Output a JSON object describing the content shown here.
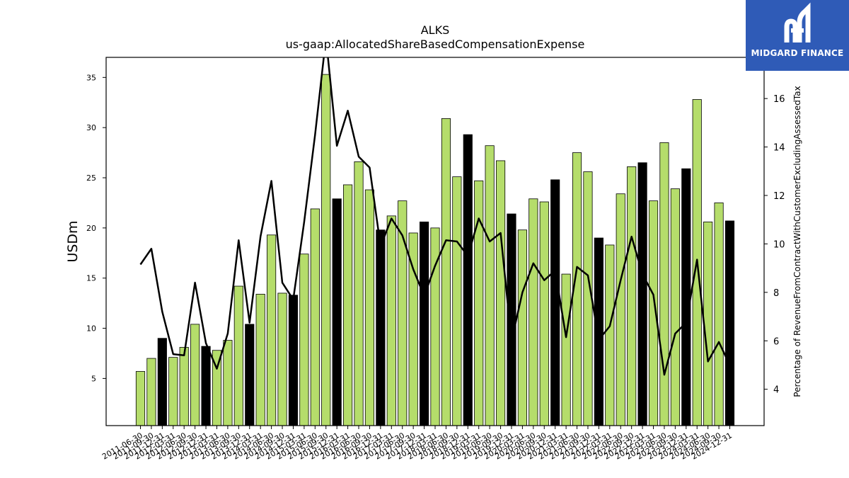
{
  "header": {
    "title": "ALKS",
    "subtitle": "us-gaap:AllocatedShareBasedCompensationExpense"
  },
  "brand": {
    "name": "MIDGARD FINANCE",
    "color": "#2f5bb7"
  },
  "chart_data": {
    "type": "bar",
    "title": "ALKS",
    "subtitle": "us-gaap:AllocatedShareBasedCompensationExpense",
    "ylabel": "USDm",
    "y2label": "Percentage of RevenueFromContractWithCustomerExcludingAssessedTax",
    "ylim": [
      0.3,
      37
    ],
    "y2lim": [
      2.5,
      17.7
    ],
    "yticks": [
      5,
      10,
      15,
      20,
      25,
      30,
      35
    ],
    "y2ticks": [
      4,
      6,
      8,
      10,
      12,
      14,
      16
    ],
    "grid": false,
    "categories": [
      "2011-06-30",
      "2011-09-30",
      "2011-12-31",
      "2012-03-31",
      "2012-06-30",
      "2012-09-30",
      "2012-12-31",
      "2013-03-31",
      "2013-06-30",
      "2013-09-30",
      "2013-12-31",
      "2014-03-31",
      "2014-06-30",
      "2014-09-30",
      "2014-12-31",
      "2015-03-31",
      "2015-06-30",
      "2015-09-30",
      "2015-12-31",
      "2016-03-31",
      "2016-06-30",
      "2016-09-30",
      "2016-12-31",
      "2017-03-31",
      "2017-06-30",
      "2017-09-30",
      "2017-12-31",
      "2018-03-31",
      "2018-06-30",
      "2018-09-30",
      "2018-12-31",
      "2019-03-31",
      "2019-06-30",
      "2019-09-30",
      "2019-12-31",
      "2020-03-31",
      "2020-06-30",
      "2020-09-30",
      "2020-12-31",
      "2021-03-31",
      "2021-06-30",
      "2021-09-30",
      "2021-12-31",
      "2022-03-31",
      "2022-06-30",
      "2022-09-30",
      "2022-12-31",
      "2023-03-31",
      "2023-06-30",
      "2023-09-30",
      "2023-12-31",
      "2024-03-31",
      "2024-06-30",
      "2024-09-30",
      "2024-12-31"
    ],
    "tick_labels": [
      "2011-06-30",
      "2011-09-30",
      "2011-12-31",
      "2012-03-31",
      "2012-06-30",
      "2012-09-30",
      "2012-12-31",
      "2013-03-31",
      "2013-06-30",
      "2013-09-30",
      "2013-12-31",
      "2014-03-31",
      "2014-06-30",
      "2014-09-30",
      "2014-12-31",
      "2015-03-31",
      "2015-06-30",
      "2015-09-30",
      "2015-12-31",
      "2016-03-31",
      "2016-06-30",
      "2016-09-30",
      "2016-12-31",
      "2017-03-31",
      "2017-06-30",
      "2017-09-30",
      "2017-12-31",
      "2018-03-31",
      "2018-06-30",
      "2018-09-30",
      "2018-12-31",
      "2019-03-31",
      "2019-06-30",
      "2019-09-30",
      "2019-12-31",
      "2020-03-31",
      "2020-06-30",
      "2020-09-30",
      "2020-12-31",
      "2021-03-31",
      "2021-06-30",
      "2021-09-30",
      "2021-12-31",
      "2022-03-31",
      "2022-06-30",
      "2022-09-30",
      "2022-12-31",
      "2023-03-31",
      "2023-06-30",
      "2023-09-30",
      "2023-12-31",
      "2024-03-31",
      "2024-06-30",
      "2024-09-30",
      "2024-12-31"
    ],
    "series": [
      {
        "type": "bar",
        "values": [
          5.7,
          7.0,
          9.0,
          7.1,
          8.1,
          10.4,
          8.2,
          7.8,
          8.8,
          14.2,
          10.4,
          13.4,
          19.3,
          13.5,
          13.3,
          17.4,
          21.9,
          35.3,
          22.9,
          24.3,
          26.6,
          23.8,
          19.8,
          21.2,
          22.7,
          19.5,
          20.6,
          20.0,
          30.9,
          25.1,
          29.3,
          24.7,
          28.2,
          26.7,
          21.4,
          19.8,
          22.9,
          22.6,
          24.8,
          15.4,
          27.5,
          25.6,
          19.0,
          18.3,
          23.4,
          26.1,
          26.5,
          22.7,
          28.5,
          23.9,
          25.9,
          32.8,
          20.6,
          22.5,
          20.7
        ],
        "highlight": [
          false,
          false,
          true,
          false,
          false,
          false,
          true,
          false,
          false,
          false,
          true,
          false,
          false,
          false,
          true,
          false,
          false,
          false,
          true,
          false,
          false,
          false,
          true,
          false,
          false,
          false,
          true,
          false,
          false,
          false,
          true,
          false,
          false,
          false,
          true,
          false,
          false,
          false,
          true,
          false,
          false,
          false,
          true,
          false,
          false,
          false,
          true,
          false,
          false,
          false,
          true,
          false,
          false,
          false,
          true
        ],
        "color": "#b5dd6b",
        "highlight_color": "#000000"
      },
      {
        "type": "line",
        "axis": "right",
        "values": [
          9.15,
          9.8,
          7.2,
          5.45,
          5.4,
          8.4,
          5.9,
          4.85,
          6.3,
          10.15,
          6.75,
          10.3,
          12.6,
          8.4,
          7.7,
          10.9,
          14.5,
          18.5,
          14.05,
          15.5,
          13.6,
          13.15,
          9.9,
          11.05,
          10.35,
          8.95,
          7.85,
          9.1,
          10.15,
          10.1,
          9.5,
          11.05,
          10.1,
          10.45,
          6.0,
          8.0,
          9.2,
          8.5,
          8.9,
          6.15,
          9.05,
          8.7,
          6.05,
          6.6,
          8.5,
          10.3,
          8.75,
          7.9,
          4.6,
          6.3,
          6.75,
          9.35,
          5.15,
          5.95,
          5.0
        ],
        "color": "#000000"
      }
    ]
  }
}
